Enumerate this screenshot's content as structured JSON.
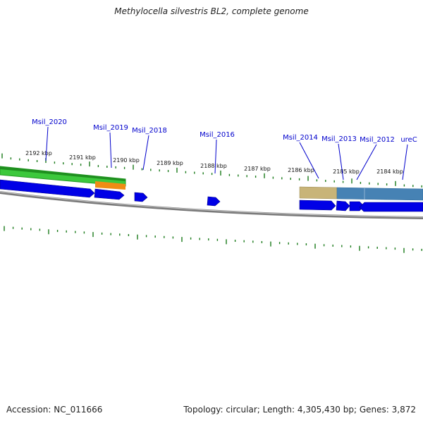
{
  "title": "Methylocella silvestris BL2, complete genome",
  "footer": {
    "accession": "Accession: NC_011666",
    "topology": "Topology: circular",
    "length": "Length: 4,305,430 bp",
    "genes": "Genes: 3,872"
  },
  "scale_labels": [
    "2192 kbp",
    "2191 kbp",
    "2190 kbp",
    "2189 kbp",
    "2188 kbp",
    "2187 kbp",
    "2186 kbp",
    "2185 kbp",
    "2184 kbp"
  ],
  "gene_labels": [
    "Msil_2020",
    "Msil_2019",
    "Msil_2018",
    "Msil_2016",
    "Msil_2014",
    "Msil_2013",
    "Msil_2012",
    "ureC"
  ],
  "colors": {
    "label": "#0000cc",
    "tick": "#1a7a1a",
    "gene": "#0000e6",
    "backbone": "#808080",
    "feature_green": "#3cc83c",
    "feature_orange": "#f08c14",
    "feature_tan": "#c8b478",
    "feature_steel": "#4682b4"
  }
}
